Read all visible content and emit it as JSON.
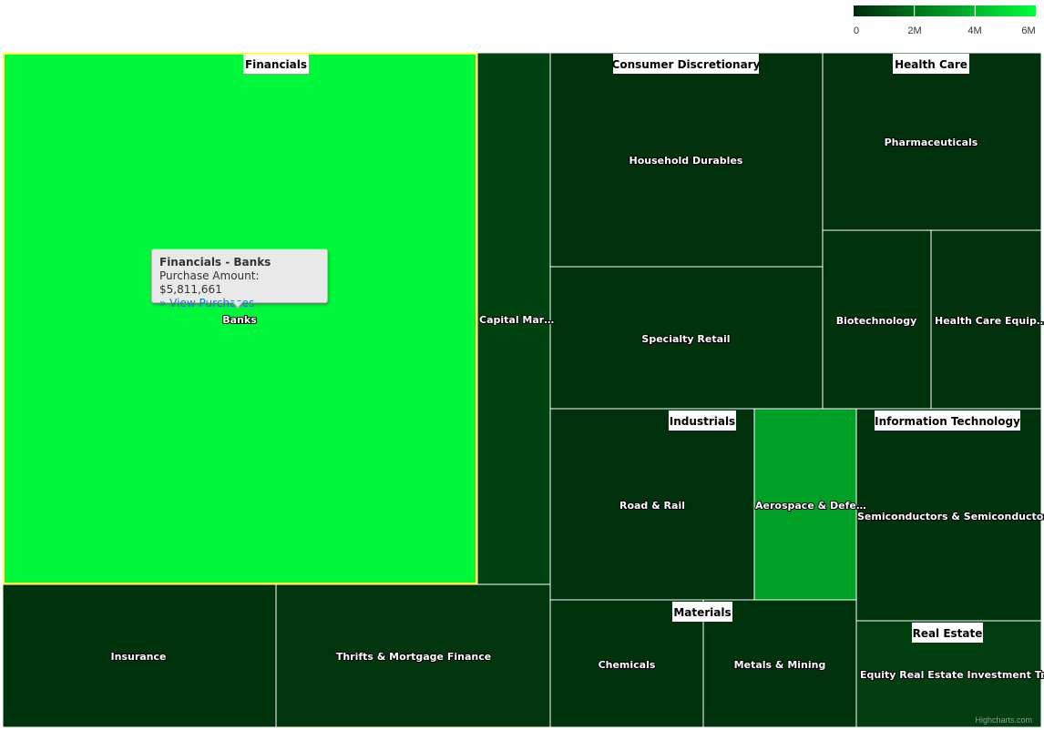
{
  "chart_data": {
    "type": "treemap",
    "value_label": "Purchase Amount",
    "color_axis": {
      "min": 0,
      "max": 6000000,
      "min_color": "#002a0a",
      "max_color": "#00ff3c",
      "ticks": [
        "0",
        "2M",
        "4M",
        "6M"
      ]
    },
    "groups": [
      {
        "name": "Financials",
        "children": [
          {
            "name": "Banks",
            "label": "Banks",
            "value": 5811661
          },
          {
            "name": "Capital Markets",
            "label": "Capital Mar…",
            "value": 700000
          },
          {
            "name": "Insurance",
            "label": "Insurance",
            "value": 250000
          },
          {
            "name": "Thrifts & Mortgage Finance",
            "label": "Thrifts & Mortgage Finance",
            "value": 300000
          }
        ]
      },
      {
        "name": "Consumer Discretionary",
        "children": [
          {
            "name": "Household Durables",
            "label": "Household Durables",
            "value": 200000
          },
          {
            "name": "Specialty Retail",
            "label": "Specialty Retail",
            "value": 220000
          }
        ]
      },
      {
        "name": "Health Care",
        "children": [
          {
            "name": "Pharmaceuticals",
            "label": "Pharmaceuticals",
            "value": 200000
          },
          {
            "name": "Biotechnology",
            "label": "Biotechnology",
            "value": 250000
          },
          {
            "name": "Health Care Equipment",
            "label": "Health Care Equip…",
            "value": 200000
          }
        ]
      },
      {
        "name": "Industrials",
        "children": [
          {
            "name": "Road & Rail",
            "label": "Road & Rail",
            "value": 200000
          },
          {
            "name": "Aerospace & Defense",
            "label": "Aerospace & Defe…",
            "value": 3300000
          }
        ]
      },
      {
        "name": "Information Technology",
        "children": [
          {
            "name": "Semiconductors & Semiconductor Equipment",
            "label": "Semiconductors & Semiconductor…",
            "value": 250000
          }
        ]
      },
      {
        "name": "Materials",
        "children": [
          {
            "name": "Chemicals",
            "label": "Chemicals",
            "value": 250000
          },
          {
            "name": "Metals & Mining",
            "label": "Metals & Mining",
            "value": 220000
          }
        ]
      },
      {
        "name": "Real Estate",
        "children": [
          {
            "name": "Equity Real Estate Investment Trusts",
            "label": "Equity Real Estate Investment Tr…",
            "value": 550000
          }
        ]
      }
    ]
  },
  "tooltip": {
    "title": "Financials - Banks",
    "amount": "Purchase Amount: $5,811,661",
    "link": "» View Purchases"
  },
  "colors": {
    "highlight_border": "#ffff33",
    "cell_border": "#ffffff"
  },
  "credits": "Highcharts.com"
}
